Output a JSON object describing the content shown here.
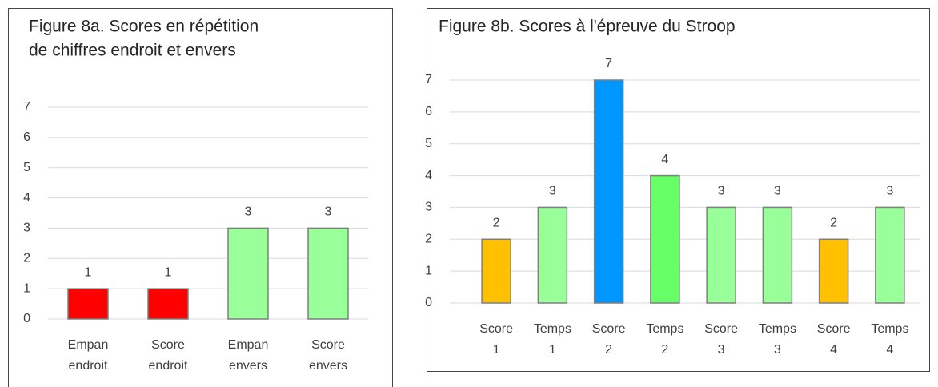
{
  "chart_data": [
    {
      "type": "bar",
      "title": [
        "Figure 8a. Scores en répétition",
        " de chiffres endroit et envers"
      ],
      "categories": [
        [
          "Empan",
          "endroit"
        ],
        [
          "Score",
          "endroit"
        ],
        [
          "Empan",
          "envers"
        ],
        [
          "Score",
          "envers"
        ]
      ],
      "values": [
        1,
        1,
        3,
        3
      ],
      "colors": [
        "#ff0000",
        "#ff0000",
        "#99ff99",
        "#99ff99"
      ],
      "ylim": [
        0,
        7
      ],
      "yticks": [
        0,
        1,
        2,
        3,
        4,
        5,
        6,
        7
      ],
      "grid": true
    },
    {
      "type": "bar",
      "title": [
        "Figure 8b. Scores à l'épreuve du Stroop"
      ],
      "categories": [
        [
          "Score",
          "1"
        ],
        [
          "Temps",
          "1"
        ],
        [
          "Score",
          "2"
        ],
        [
          "Temps",
          "2"
        ],
        [
          "Score",
          "3"
        ],
        [
          "Temps",
          "3"
        ],
        [
          "Score",
          "4"
        ],
        [
          "Temps",
          "4"
        ]
      ],
      "values": [
        2,
        3,
        7,
        4,
        3,
        3,
        2,
        3
      ],
      "colors": [
        "#ffc000",
        "#99ff99",
        "#0096ff",
        "#66ff66",
        "#99ff99",
        "#99ff99",
        "#ffc000",
        "#99ff99"
      ],
      "ylim": [
        0,
        7
      ],
      "yticks": [
        0,
        1,
        2,
        3,
        4,
        5,
        6,
        7
      ],
      "grid": true
    }
  ]
}
